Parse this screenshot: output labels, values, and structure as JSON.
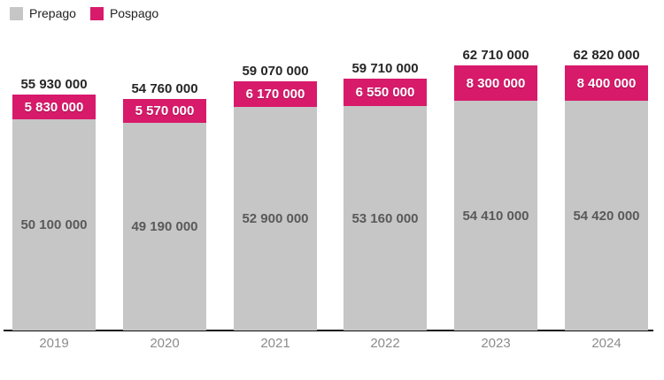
{
  "legend": {
    "items": [
      {
        "label": "Prepago",
        "color": "#c6c6c6"
      },
      {
        "label": "Pospago",
        "color": "#d81a6b"
      }
    ]
  },
  "chart_data": {
    "type": "bar",
    "stacked": true,
    "title": "",
    "xlabel": "",
    "ylabel": "",
    "categories": [
      "2019",
      "2020",
      "2021",
      "2022",
      "2023",
      "2024"
    ],
    "series": [
      {
        "name": "Prepago",
        "color": "#c6c6c6",
        "values": [
          50100000,
          49190000,
          52900000,
          53160000,
          54410000,
          54420000
        ]
      },
      {
        "name": "Pospago",
        "color": "#d81a6b",
        "values": [
          5830000,
          5570000,
          6170000,
          6550000,
          8300000,
          8400000
        ]
      }
    ],
    "totals": [
      55930000,
      54760000,
      59070000,
      59710000,
      62710000,
      62820000
    ],
    "value_label_format": "space-thousands",
    "ylim": [
      0,
      65000000
    ],
    "grid": false,
    "legend_position": "top-left",
    "axis_color": "#111111",
    "total_label_color": "#262626",
    "prepago_label_color": "#595959",
    "pospago_label_color": "#ffffff",
    "x_label_color": "#8c8c8c"
  }
}
